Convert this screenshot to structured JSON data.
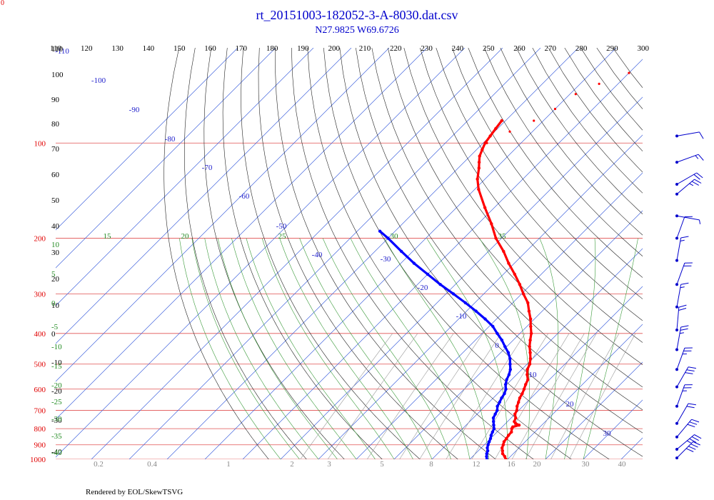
{
  "chart_data": {
    "type": "skew-t",
    "title": "rt_20151003-182052-3-A-8030.dat.csv",
    "subtitle": "N27.9825 W69.6726",
    "footer": "Rendered by EOL/SkewTSVG",
    "corner_label": "0",
    "top_ticks": [
      "110",
      "120",
      "130",
      "140",
      "150",
      "160",
      "170",
      "180",
      "190",
      "200",
      "210",
      "220",
      "230",
      "240",
      "250",
      "260",
      "270",
      "280",
      "290",
      "300"
    ],
    "pressure_levels": [
      100,
      200,
      300,
      400,
      500,
      600,
      700,
      800,
      900,
      1000
    ],
    "pressure_labels": [
      "100",
      "200",
      "300",
      "400",
      "500",
      "600",
      "700",
      "800",
      "900",
      "1000"
    ],
    "isotherm_labels": [
      "-110",
      "-100",
      "-90",
      "-80",
      "-70",
      "-60",
      "-50",
      "-40",
      "-30",
      "-20",
      "-10",
      "0",
      "10",
      "20",
      "30"
    ],
    "dry_adiabat_labels": [
      "110",
      "100",
      "90",
      "80",
      "70",
      "60",
      "50",
      "40",
      "30",
      "20",
      "10",
      "0",
      "-10",
      "-20",
      "-30",
      "-40"
    ],
    "wet_adiabat_top_labels": [
      "15",
      "20",
      "25",
      "30",
      "35"
    ],
    "wet_adiabat_left_labels": [
      "10",
      "5",
      "0",
      "-5",
      "-10",
      "-15",
      "-20",
      "-25",
      "-30",
      "-35",
      "-40"
    ],
    "mixing_ratio_labels": [
      "0.2",
      "0.4",
      "1",
      "2",
      "3",
      "5",
      "8",
      "12",
      "16",
      "20",
      "30",
      "40"
    ],
    "series": [
      {
        "name": "temperature",
        "color": "#ff0000",
        "points": [
          [
            1000,
            19.5
          ],
          [
            980,
            18.5
          ],
          [
            960,
            17.2
          ],
          [
            940,
            16.4
          ],
          [
            920,
            15.5
          ],
          [
            900,
            15.0
          ],
          [
            880,
            14.4
          ],
          [
            860,
            14.2
          ],
          [
            840,
            13.9
          ],
          [
            820,
            13.8
          ],
          [
            800,
            13.0
          ],
          [
            790,
            12.8
          ],
          [
            780,
            14.0
          ],
          [
            770,
            12.6
          ],
          [
            760,
            11.8
          ],
          [
            740,
            11.2
          ],
          [
            720,
            10.0
          ],
          [
            700,
            9.5
          ],
          [
            680,
            8.5
          ],
          [
            660,
            7.8
          ],
          [
            640,
            7.0
          ],
          [
            620,
            6.5
          ],
          [
            600,
            5.8
          ],
          [
            580,
            5.0
          ],
          [
            560,
            4.3
          ],
          [
            540,
            2.8
          ],
          [
            520,
            1.5
          ],
          [
            500,
            0.7
          ],
          [
            480,
            -0.6
          ],
          [
            460,
            -2.2
          ],
          [
            440,
            -4.0
          ],
          [
            420,
            -5.5
          ],
          [
            400,
            -7.0
          ],
          [
            380,
            -9.0
          ],
          [
            360,
            -11.0
          ],
          [
            340,
            -13.5
          ],
          [
            320,
            -16.0
          ],
          [
            300,
            -19.5
          ],
          [
            280,
            -23.0
          ],
          [
            260,
            -27.0
          ],
          [
            240,
            -31.5
          ],
          [
            220,
            -36.0
          ],
          [
            200,
            -41.5
          ],
          [
            180,
            -46.5
          ],
          [
            160,
            -52.5
          ],
          [
            140,
            -59.0
          ],
          [
            130,
            -62.0
          ],
          [
            120,
            -64.5
          ],
          [
            115,
            -66.0
          ],
          [
            110,
            -67.5
          ],
          [
            105,
            -68.5
          ],
          [
            100,
            -69.5
          ],
          [
            95,
            -70.0
          ],
          [
            90,
            -70.5
          ],
          [
            85,
            -71.0
          ]
        ]
      },
      {
        "name": "temperature-upper",
        "color": "#ff0000",
        "points": [
          [
            100,
            -69.0
          ],
          [
            92,
            -66.0
          ],
          [
            85,
            -62.5
          ],
          [
            78,
            -60.0
          ],
          [
            70,
            -58.5
          ],
          [
            65,
            -55.0
          ],
          [
            60,
            -50.0
          ],
          [
            55,
            -45.5
          ],
          [
            50,
            -40.0
          ],
          [
            47,
            -36.0
          ]
        ]
      },
      {
        "name": "dewpoint",
        "color": "#0000ff",
        "points": [
          [
            1000,
            14.5
          ],
          [
            980,
            13.7
          ],
          [
            960,
            13.0
          ],
          [
            940,
            12.5
          ],
          [
            920,
            11.6
          ],
          [
            900,
            11.0
          ],
          [
            880,
            10.5
          ],
          [
            860,
            10.0
          ],
          [
            840,
            9.3
          ],
          [
            820,
            8.8
          ],
          [
            800,
            8.3
          ],
          [
            780,
            7.3
          ],
          [
            760,
            6.3
          ],
          [
            740,
            5.3
          ],
          [
            720,
            4.8
          ],
          [
            700,
            4.3
          ],
          [
            680,
            3.3
          ],
          [
            660,
            2.8
          ],
          [
            640,
            2.2
          ],
          [
            620,
            1.8
          ],
          [
            600,
            1.0
          ],
          [
            580,
            -0.3
          ],
          [
            560,
            -1.3
          ],
          [
            540,
            -2.0
          ],
          [
            520,
            -3.0
          ],
          [
            500,
            -4.5
          ],
          [
            480,
            -6.0
          ],
          [
            460,
            -8.0
          ],
          [
            440,
            -10.5
          ],
          [
            420,
            -13.0
          ],
          [
            400,
            -16.0
          ],
          [
            380,
            -19.0
          ],
          [
            360,
            -23.0
          ],
          [
            340,
            -27.5
          ],
          [
            320,
            -32.5
          ],
          [
            300,
            -38.0
          ],
          [
            280,
            -44.0
          ],
          [
            260,
            -50.0
          ],
          [
            240,
            -56.5
          ],
          [
            220,
            -63.0
          ],
          [
            200,
            -70.0
          ],
          [
            190,
            -74.0
          ]
        ]
      }
    ],
    "wind_barbs": [
      {
        "pressure": 95,
        "speed_kt": 10,
        "dir": 260
      },
      {
        "pressure": 115,
        "speed_kt": 15,
        "dir": 250
      },
      {
        "pressure": 135,
        "speed_kt": 20,
        "dir": 240
      },
      {
        "pressure": 145,
        "speed_kt": 25,
        "dir": 230
      },
      {
        "pressure": 170,
        "speed_kt": 5,
        "dir": 280
      },
      {
        "pressure": 200,
        "speed_kt": 10,
        "dir": 200
      },
      {
        "pressure": 235,
        "speed_kt": 15,
        "dir": 190
      },
      {
        "pressure": 280,
        "speed_kt": 20,
        "dir": 200
      },
      {
        "pressure": 330,
        "speed_kt": 15,
        "dir": 190
      },
      {
        "pressure": 390,
        "speed_kt": 20,
        "dir": 185
      },
      {
        "pressure": 450,
        "speed_kt": 25,
        "dir": 190
      },
      {
        "pressure": 520,
        "speed_kt": 25,
        "dir": 200
      },
      {
        "pressure": 590,
        "speed_kt": 30,
        "dir": 210
      },
      {
        "pressure": 680,
        "speed_kt": 25,
        "dir": 200
      },
      {
        "pressure": 770,
        "speed_kt": 20,
        "dir": 210
      },
      {
        "pressure": 850,
        "speed_kt": 30,
        "dir": 220
      },
      {
        "pressure": 930,
        "speed_kt": 35,
        "dir": 230
      },
      {
        "pressure": 990,
        "speed_kt": 40,
        "dir": 225
      }
    ]
  }
}
